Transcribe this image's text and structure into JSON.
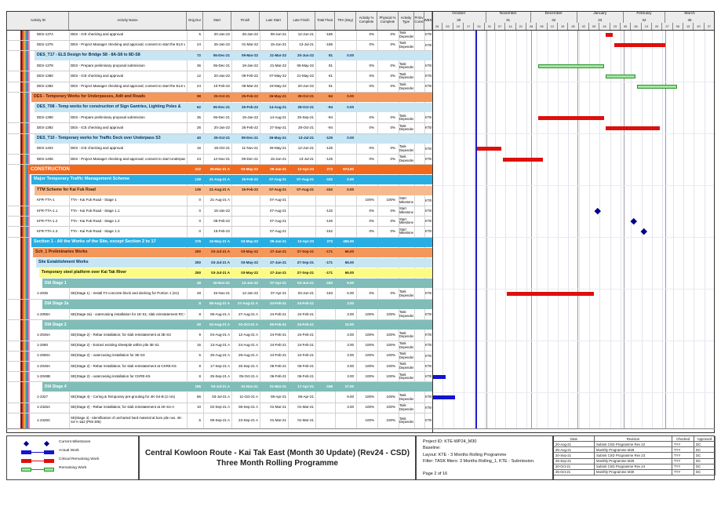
{
  "chart_data": {
    "type": "table",
    "title": "Central Kowloon Route - Kai Tak East (Month 30 Update) (Rev24 - CSD) Three Month Rolling Programme",
    "columns": [
      "Activity ID",
      "Activity Name",
      "Orig Dur",
      "Start",
      "Finish",
      "Late Start",
      "Late Finish",
      "Total Float",
      "TRA (Day)",
      "Activity % Complete",
      "Physical % Complete",
      "Activity Type",
      "Primv Const",
      "WBS"
    ],
    "timeline": {
      "start_label": "26-Sep-21",
      "data_date": "25-Oct-21",
      "data_date_day": 29,
      "span_days": 189,
      "months": [
        {
          "name": "October",
          "num": "30",
          "a": 0,
          "b": 36
        },
        {
          "name": "November",
          "num": "31",
          "a": 36,
          "b": 66
        },
        {
          "name": "December",
          "num": "32",
          "a": 66,
          "b": 97
        },
        {
          "name": "January",
          "num": "33",
          "a": 97,
          "b": 128
        },
        {
          "name": "February",
          "num": "34",
          "a": 128,
          "b": 156
        },
        {
          "name": "March",
          "num": "35",
          "a": 156,
          "b": 189
        }
      ],
      "weeks": [
        "26",
        "03",
        "10",
        "17",
        "24",
        "31",
        "07",
        "14",
        "21",
        "28",
        "05",
        "12",
        "19",
        "26",
        "02",
        "09",
        "16",
        "23",
        "30",
        "06",
        "13",
        "20",
        "27",
        "06",
        "13",
        "20",
        "27"
      ]
    },
    "rows": [
      {
        "kind": "t",
        "id": "DES-1374",
        "name": "DES - ICE checking and approval",
        "dur": "5",
        "start": "20-Jan-22",
        "finish": "25-Jan-22",
        "late_start": "08-Jun-21",
        "late_finish": "12-Jun-21",
        "total_float": "-186",
        "tra": "",
        "act_pct": "0%",
        "phy_pct": "0%",
        "type": "Task Dependent",
        "wbs": "KTE-",
        "bar": {
          "c": "crit",
          "f": 116,
          "t": 121
        }
      },
      {
        "kind": "t",
        "id": "DES-1376",
        "name": "DES - Project Manager checking and approval; consent to start the ELS works",
        "dur": "24",
        "start": "26-Jan-22",
        "finish": "01-Mar-22",
        "late_start": "15-Jun-21",
        "late_finish": "13-Jul-21",
        "total_float": "-186",
        "tra": "",
        "act_pct": "0%",
        "phy_pct": "0%",
        "type": "Task Dependent",
        "wbs": "KTE-",
        "bar": {
          "c": "crit",
          "f": 122,
          "t": 156
        }
      },
      {
        "kind": "blue",
        "ind": 8,
        "name": "DES_T17 - ELS Design for Bridge S8 - 8A-S8 to 8D-S8",
        "dur": "72",
        "start": "06-Dec-21",
        "finish": "09-Mar-22",
        "late_start": "21-Mar-22",
        "late_finish": "20-Jun-22",
        "total_float": "81",
        "tra": "0.00"
      },
      {
        "kind": "t",
        "id": "DES-1378",
        "name": "DES - Prepare preliminary proposal submission",
        "dur": "36",
        "start": "06-Dec-21",
        "finish": "19-Jan-22",
        "late_start": "21-Mar-22",
        "late_finish": "06-May-22",
        "total_float": "81",
        "tra": "",
        "act_pct": "0%",
        "phy_pct": "0%",
        "type": "Task Dependent",
        "wbs": "KTE-",
        "bar": {
          "c": "rem",
          "f": 71,
          "t": 115
        }
      },
      {
        "kind": "t",
        "id": "DES-1380",
        "name": "DES - ICE checking and approval",
        "dur": "12",
        "start": "20-Jan-22",
        "finish": "09-Feb-22",
        "late_start": "07-May-22",
        "late_finish": "21-May-22",
        "total_float": "81",
        "tra": "",
        "act_pct": "0%",
        "phy_pct": "0%",
        "type": "Task Dependent",
        "wbs": "KTE-",
        "bar": {
          "c": "rem",
          "f": 116,
          "t": 136
        }
      },
      {
        "kind": "t",
        "id": "DES-1382",
        "name": "DES - Project Manager checking and approval; consent to start the ELS works",
        "dur": "24",
        "start": "10-Feb-22",
        "finish": "09-Mar-22",
        "late_start": "23-May-22",
        "late_finish": "20-Jun-22",
        "total_float": "81",
        "tra": "",
        "act_pct": "0%",
        "phy_pct": "0%",
        "type": "Task Dependent",
        "wbs": "KTE-",
        "bar": {
          "c": "rem",
          "f": 137,
          "t": 164
        }
      },
      {
        "kind": "orange",
        "ind": 4,
        "name": "DES - Temporary Works for Underpasses, Adit and Roads",
        "dur": "98",
        "start": "25-Oct-21",
        "finish": "25-Feb-22",
        "late_start": "26-May-21",
        "late_finish": "28-Oct-21",
        "total_float": "-94",
        "tra": "0.00"
      },
      {
        "kind": "blue",
        "ind": 8,
        "name": "DES_T08 - Temp works for construction of Sign Gantries, Lighting Poles &",
        "dur": "62",
        "start": "06-Dec-21",
        "finish": "25-Feb-22",
        "late_start": "14-Aug-21",
        "late_finish": "28-Oct-21",
        "total_float": "-94",
        "tra": "0.00"
      },
      {
        "kind": "t",
        "id": "DES-1390",
        "name": "DES - Prepare preliminary proposal submission",
        "dur": "36",
        "start": "06-Dec-21",
        "finish": "19-Jan-22",
        "late_start": "14-Aug-21",
        "late_finish": "25-Sep-21",
        "total_float": "-94",
        "tra": "",
        "act_pct": "0%",
        "phy_pct": "0%",
        "type": "Task Dependent",
        "wbs": "KTE-",
        "bar": {
          "c": "crit",
          "f": 71,
          "t": 115
        }
      },
      {
        "kind": "t",
        "id": "DES-1392",
        "name": "DES - ICE checking and approval",
        "dur": "26",
        "start": "20-Jan-22",
        "finish": "25-Feb-22",
        "late_start": "27-Sep-21",
        "late_finish": "28-Oct-21",
        "total_float": "-94",
        "tra": "",
        "act_pct": "0%",
        "phy_pct": "0%",
        "type": "Task Dependent",
        "wbs": "KTE-",
        "bar": {
          "c": "crit",
          "f": 116,
          "t": 152
        }
      },
      {
        "kind": "blue",
        "ind": 8,
        "name": "DES_T10 - Temporary works for Traffic Deck over Underpass S3",
        "dur": "40",
        "start": "25-Oct-21",
        "finish": "09-Dec-21",
        "late_start": "26-May-21",
        "late_finish": "13-Jul-21",
        "total_float": "-125",
        "tra": "0.00"
      },
      {
        "kind": "t",
        "id": "DES-1404",
        "name": "DES - ICE checking and approval",
        "dur": "16",
        "start": "25-Oct-21",
        "finish": "11-Nov-21",
        "late_start": "26-May-21",
        "late_finish": "12-Jun-21",
        "total_float": "-125",
        "tra": "",
        "act_pct": "0%",
        "phy_pct": "0%",
        "type": "Task Dependent",
        "wbs": "KTE-",
        "bar": {
          "c": "crit",
          "f": 29,
          "t": 46
        }
      },
      {
        "kind": "t",
        "id": "DES-1406",
        "name": "DES - Project Manager checking and approval; consent to start Underpass S3",
        "dur": "24",
        "start": "12-Nov-21",
        "finish": "09-Dec-21",
        "late_start": "15-Jun-21",
        "late_finish": "13-Jul-21",
        "total_float": "-125",
        "tra": "",
        "act_pct": "0%",
        "phy_pct": "0%",
        "type": "Task Dependent",
        "wbs": "KTE-",
        "bar": {
          "c": "crit",
          "f": 47,
          "t": 74
        }
      },
      {
        "kind": "constr",
        "ind": 0,
        "name": "CONSTRUCTION",
        "dur": "222",
        "start": "25-Mar-21 A",
        "finish": "03-May-22",
        "late_start": "09-Jan-21",
        "late_finish": "12-Apr-23",
        "total_float": "273",
        "tra": "674.00"
      },
      {
        "kind": "cyan",
        "ind": 4,
        "name": "Major Temporary Traffic Management Scheme",
        "dur": "139",
        "start": "21-Aug-21 A",
        "finish": "15-Feb-22",
        "late_start": "07-Aug-21",
        "late_finish": "07-Aug-21",
        "total_float": "-152",
        "tra": "0.00"
      },
      {
        "kind": "salmon",
        "ind": 8,
        "name": "TTM Scheme for Kai Fuk Road",
        "dur": "139",
        "start": "21-Aug-21 A",
        "finish": "15-Feb-22",
        "late_start": "07-Aug-21",
        "late_finish": "07-Aug-21",
        "total_float": "-152",
        "tra": "0.00"
      },
      {
        "kind": "t",
        "id": "KFR-TTA-1",
        "name": "TTA - Kai Fuk Road - Stage 1",
        "dur": "0",
        "start": "21-Aug-21 A",
        "finish": "",
        "late_start": "07-Aug-21",
        "late_finish": "",
        "total_float": "",
        "tra": "",
        "act_pct": "100%",
        "phy_pct": "100%",
        "type": "Start Milestone",
        "wbs": "KTE-"
      },
      {
        "kind": "t",
        "id": "KFR-TTA-1.1",
        "name": "TTA - Kai Fuk Road - Stage 1.1",
        "dur": "0",
        "start": "15-Jan-22",
        "finish": "",
        "late_start": "07-Aug-21",
        "late_finish": "",
        "total_float": "-132",
        "tra": "",
        "act_pct": "0%",
        "phy_pct": "0%",
        "type": "Start Milestone",
        "wbs": "KTE-",
        "ms": 111
      },
      {
        "kind": "t",
        "id": "KFR-TTA-1.2",
        "name": "TTA - Kai Fuk Road - Stage 1.2",
        "dur": "0",
        "start": "08-Feb-22",
        "finish": "",
        "late_start": "07-Aug-21",
        "late_finish": "",
        "total_float": "-146",
        "tra": "",
        "act_pct": "0%",
        "phy_pct": "0%",
        "type": "Start Milestone",
        "wbs": "KTE-",
        "ms": 135
      },
      {
        "kind": "t",
        "id": "KFR-TTA-1.3",
        "name": "TTA - Kai Fuk Road - Stage 1.3",
        "dur": "0",
        "start": "15-Feb-22",
        "finish": "",
        "late_start": "07-Aug-21",
        "late_finish": "",
        "total_float": "-152",
        "tra": "",
        "act_pct": "0%",
        "phy_pct": "0%",
        "type": "Start Milestone",
        "wbs": "KTE-",
        "ms": 142
      },
      {
        "kind": "cyan",
        "ind": 4,
        "name": "Section 1 - All the Works of the Site, except Section 2 to 17",
        "dur": "276",
        "start": "15-May-21 A",
        "finish": "03-May-22",
        "late_start": "09-Jan-21",
        "late_finish": "12-Apr-23",
        "total_float": "273",
        "tra": "465.00"
      },
      {
        "kind": "orange",
        "ind": 6,
        "name": "Sch_1 Preliminaries Works",
        "dur": "250",
        "start": "03-Jul-21 A",
        "finish": "03-May-22",
        "late_start": "27-Jan-21",
        "late_finish": "27-Sep-21",
        "total_float": "-171",
        "tra": "66.00"
      },
      {
        "kind": "blue",
        "ind": 10,
        "name": "Site Establishment Works",
        "dur": "250",
        "start": "03-Jul-21 A",
        "finish": "03-May-22",
        "late_start": "27-Jan-21",
        "late_finish": "27-Sep-21",
        "total_float": "-171",
        "tra": "66.00"
      },
      {
        "kind": "yellow",
        "ind": 14,
        "name": "Temporary steel platform over Kai Tak River",
        "dur": "250",
        "start": "03-Jul-21 A",
        "finish": "03-May-22",
        "late_start": "27-Jan-21",
        "late_finish": "27-Sep-21",
        "total_float": "-171",
        "tra": "66.00"
      },
      {
        "kind": "teal",
        "ind": 18,
        "name": "DIA Stage 1",
        "dur": "48",
        "start": "15-Nov-21",
        "finish": "12-Jan-22",
        "late_start": "07-Apr-21",
        "late_finish": "03-Jun-21",
        "total_float": "-183",
        "tra": "6.00"
      },
      {
        "kind": "t",
        "id": "1-2036",
        "name": "SE(Stage 1) - Install F3 concrete block and decking for Portion 1 (S1)",
        "dur": "48",
        "start": "15-Nov-21",
        "finish": "12-Jan-22",
        "late_start": "07-Apr-21",
        "late_finish": "03-Jun-21",
        "total_float": "-183",
        "tra": "6.00",
        "act_pct": "0%",
        "phy_pct": "0%",
        "type": "Task Dependent",
        "wbs": "KTE-",
        "bar": {
          "c": "crit",
          "f": 50,
          "t": 108
        }
      },
      {
        "kind": "teal",
        "ind": 18,
        "name": "DIA Stage 2a",
        "dur": "8",
        "start": "08-Aug-21 A",
        "finish": "27-Aug-21 A",
        "late_start": "24-Feb-21",
        "late_finish": "24-Feb-21",
        "total_float": "",
        "tra": "3.00"
      },
      {
        "kind": "t",
        "id": "1-2058A",
        "name": "SE(Stage 2a) - outercasing installation for 1E-S1; slab reinstatement RC works",
        "dur": "8",
        "start": "08-Aug-21 A",
        "finish": "27-Aug-21 A",
        "late_start": "24-Feb-21",
        "late_finish": "24-Feb-21",
        "total_float": "",
        "tra": "3.00",
        "act_pct": "100%",
        "phy_pct": "100%",
        "type": "Task Dependent",
        "wbs": "KTE-"
      },
      {
        "kind": "teal",
        "ind": 18,
        "name": "DIA Stage 2",
        "dur": "40",
        "start": "04-Aug-21 A",
        "finish": "01-Oct-21 A",
        "late_start": "06-Feb-21",
        "late_finish": "24-Feb-21",
        "total_float": "",
        "tra": "12.00"
      },
      {
        "kind": "t",
        "id": "1-2046A",
        "name": "SE(Stage 2) - Rebar installation; for slab reinstatement at 3E-S3",
        "dur": "9",
        "start": "04-Aug-21 A",
        "finish": "12-Aug-21 A",
        "late_start": "24-Feb-21",
        "late_finish": "24-Feb-21",
        "total_float": "",
        "tra": "3.00",
        "act_pct": "100%",
        "phy_pct": "100%",
        "type": "Task Dependent",
        "wbs": "KTE-"
      },
      {
        "kind": "t",
        "id": "1-2060",
        "name": "SE(Stage 2) - Extract existing sheetpile within pile 3E-S1",
        "dur": "15",
        "start": "13-Aug-21 A",
        "finish": "24-Aug-21 A",
        "late_start": "24-Feb-21",
        "late_finish": "24-Feb-21",
        "total_float": "",
        "tra": "3.00",
        "act_pct": "100%",
        "phy_pct": "100%",
        "type": "Task Dependent",
        "wbs": "KTE-"
      },
      {
        "kind": "t",
        "id": "1-2060A",
        "name": "SE(Stage 2) - outercasing installation for 3E-S3",
        "dur": "6",
        "start": "25-Aug-21 A",
        "finish": "28-Aug-21 A",
        "late_start": "24-Feb-21",
        "late_finish": "24-Feb-21",
        "total_float": "",
        "tra": "3.00",
        "act_pct": "100%",
        "phy_pct": "100%",
        "type": "Task Dependent",
        "wbs": "KTE-"
      },
      {
        "kind": "t",
        "id": "1-2048A",
        "name": "SE(Stage 2) - Rebar installation; for slab reinstatement at CKRE-K5",
        "dur": "9",
        "start": "17-Sep-21 A",
        "finish": "25-Sep-21 A",
        "late_start": "06-Feb-21",
        "late_finish": "06-Feb-21",
        "total_float": "",
        "tra": "3.00",
        "act_pct": "100%",
        "phy_pct": "100%",
        "type": "Task Dependent",
        "wbs": "KTE-"
      },
      {
        "kind": "t",
        "id": "1-2048B",
        "name": "SE(Stage 2) - outercasing installation for CKRE-K5",
        "dur": "8",
        "start": "25-Sep-21 A",
        "finish": "05-Oct-21 A",
        "late_start": "06-Feb-21",
        "late_finish": "06-Feb-21",
        "total_float": "",
        "tra": "3.00",
        "act_pct": "100%",
        "phy_pct": "100%",
        "type": "Task Dependent",
        "wbs": "KTE-",
        "bar": {
          "c": "act",
          "f": 0,
          "t": 9
        }
      },
      {
        "kind": "teal",
        "ind": 18,
        "name": "DIA Stage 4",
        "dur": "195",
        "start": "03-Jul-21 A",
        "finish": "01-Nov-21",
        "late_start": "01-Mar-21",
        "late_finish": "17-Apr-21",
        "total_float": "-198",
        "tra": "27.00"
      },
      {
        "kind": "t",
        "id": "1-2327",
        "name": "SE(Stage 4) - Coring & Temporary pre-grouting for 4K-S4-B (2 nrs)",
        "dur": "66",
        "start": "03-Jul-21 A",
        "finish": "11-Oct-21 A",
        "late_start": "08-Apr-21",
        "late_finish": "08-Apr-21",
        "total_float": "",
        "tra": "9.00",
        "act_pct": "100%",
        "phy_pct": "100%",
        "type": "Task Dependent",
        "wbs": "KTE-",
        "bar": {
          "c": "act",
          "f": 0,
          "t": 15
        }
      },
      {
        "kind": "t",
        "id": "1-2326A",
        "name": "SE(Stage 2) - Rebar installation; for slab reinstatement at 4K-S4-A",
        "dur": "10",
        "start": "02-Sep-21 A",
        "finish": "08-Sep-21 A",
        "late_start": "01-Mar-21",
        "late_finish": "01-Mar-21",
        "total_float": "",
        "tra": "3.00",
        "act_pct": "100%",
        "phy_pct": "100%",
        "type": "Task Dependent",
        "wbs": "KTE-"
      },
      {
        "kind": "t",
        "id": "1-2326C",
        "wrap": true,
        "name": "SE(Stage 4) -  Identification of uncharted hard material at bore pile nos. 4K-S4-A-1&2 (PMI 306)",
        "dur": "6",
        "start": "09-Sep-21 A",
        "finish": "23-Sep-21 A",
        "late_start": "01-Mar-21",
        "late_finish": "01-Mar-21",
        "total_float": "",
        "tra": "",
        "act_pct": "100%",
        "phy_pct": "100%",
        "type": "Task Dependent",
        "wbs": "KTE-"
      }
    ]
  },
  "colors": {
    "critical": "#DE0F0C",
    "remaining_fill": "#9CE89C",
    "remaining_border": "#2F8F2F",
    "actual": "#1414CE",
    "milestone": "#00008B",
    "data_date_line": "#1A1AD0",
    "sum_blue": "#C8E5F3",
    "sum_orange": "#F4975A",
    "sum_salmon": "#F7B98E",
    "sum_cyan": "#29AEE4",
    "sum_construction": "#F2691D",
    "sum_yellow": "#FCFC85",
    "sum_teal": "#80BDB8"
  },
  "legend": {
    "items": [
      {
        "type": "milestone",
        "label": "Current Milestones"
      },
      {
        "type": "actual",
        "label": "Actual Work"
      },
      {
        "type": "critical",
        "label": "Critical Remaining Work"
      },
      {
        "type": "remaining",
        "label": "Remaining Work"
      }
    ]
  },
  "footer": {
    "title_line1": "Central Kowloon Route - Kai Tak East (Month 30 Update) (Rev24 - CSD)",
    "title_line2": "Three Month Rolling Programme",
    "info": [
      "Project ID: KTE-WP24_M30",
      "Baseline:",
      "Layout: KTE - 3 Months Rolling Programme",
      "Filter: TASK filters: 3 Months Rolling_1, KTE - Submission."
    ],
    "page": "Page 2 of 16",
    "revisions": {
      "headers": [
        "Date",
        "Revision",
        "Checked",
        "Approved"
      ],
      "rows": [
        [
          "20-Aug-21",
          "Submit CSD Programme Rev 22",
          "TYY",
          "DC"
        ],
        [
          "25-Aug-21",
          "Monthly Programme M28",
          "TYY",
          "DC"
        ],
        [
          "20-Sep-21",
          "Submit CSD Programme Rev 23",
          "TYY",
          "DC"
        ],
        [
          "25-Sep-21",
          "Monthly Programme M29",
          "TYY",
          "DC"
        ],
        [
          "20-Oct-21",
          "Submit CSD Programme Rev 24",
          "TYY",
          "DC"
        ],
        [
          "25-Oct-21",
          "Monthly Programme M30",
          "TYY",
          "DC"
        ]
      ]
    }
  }
}
